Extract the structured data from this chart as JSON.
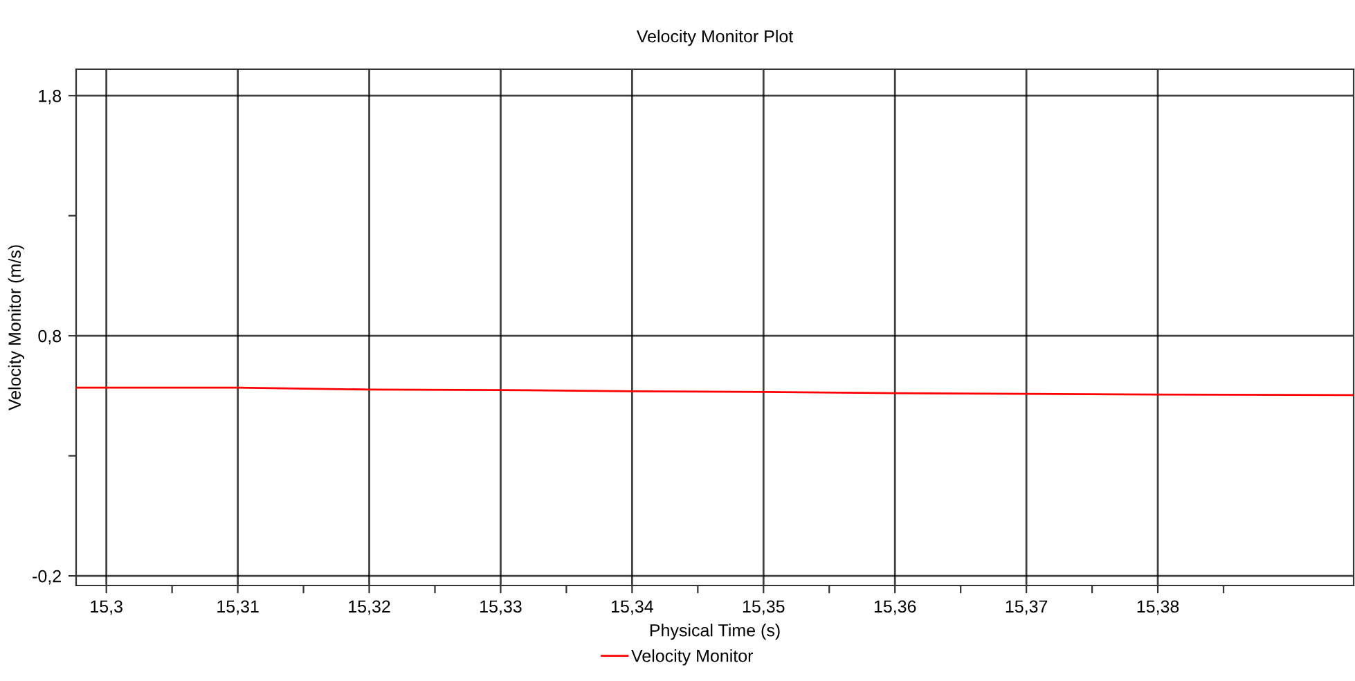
{
  "chart_data": {
    "type": "line",
    "title": "Velocity Monitor Plot",
    "xlabel": "Physical Time (s)",
    "ylabel": "Velocity Monitor (m/s)",
    "series": [
      {
        "name": "Velocity Monitor",
        "color": "#ff0000",
        "x": [
          15.2977,
          15.31,
          15.32,
          15.33,
          15.34,
          15.35,
          15.36,
          15.37,
          15.38,
          15.3949
        ],
        "values": [
          0.584,
          0.584,
          0.576,
          0.574,
          0.569,
          0.566,
          0.561,
          0.558,
          0.555,
          0.553
        ]
      }
    ],
    "xlim": [
      15.2977,
      15.3949
    ],
    "ylim": [
      -0.24,
      1.91
    ],
    "xticks": [
      {
        "value": 15.3,
        "label": "15,3"
      },
      {
        "value": 15.305,
        "label": null
      },
      {
        "value": 15.31,
        "label": "15,31"
      },
      {
        "value": 15.315,
        "label": null
      },
      {
        "value": 15.32,
        "label": "15,32"
      },
      {
        "value": 15.325,
        "label": null
      },
      {
        "value": 15.33,
        "label": "15,33"
      },
      {
        "value": 15.335,
        "label": null
      },
      {
        "value": 15.34,
        "label": "15,34"
      },
      {
        "value": 15.345,
        "label": null
      },
      {
        "value": 15.35,
        "label": "15,35"
      },
      {
        "value": 15.355,
        "label": null
      },
      {
        "value": 15.36,
        "label": "15,36"
      },
      {
        "value": 15.365,
        "label": null
      },
      {
        "value": 15.37,
        "label": "15,37"
      },
      {
        "value": 15.375,
        "label": null
      },
      {
        "value": 15.38,
        "label": "15,38"
      },
      {
        "value": 15.385,
        "label": null
      }
    ],
    "yticks": [
      {
        "value": -0.2,
        "label": "-0,2"
      },
      {
        "value": 0.3,
        "label": null
      },
      {
        "value": 0.8,
        "label": "0,8"
      },
      {
        "value": 1.3,
        "label": null
      },
      {
        "value": 1.8,
        "label": "1,8"
      }
    ],
    "grid": true,
    "legend": "bottom",
    "marker": "none",
    "line_style": "solid"
  }
}
